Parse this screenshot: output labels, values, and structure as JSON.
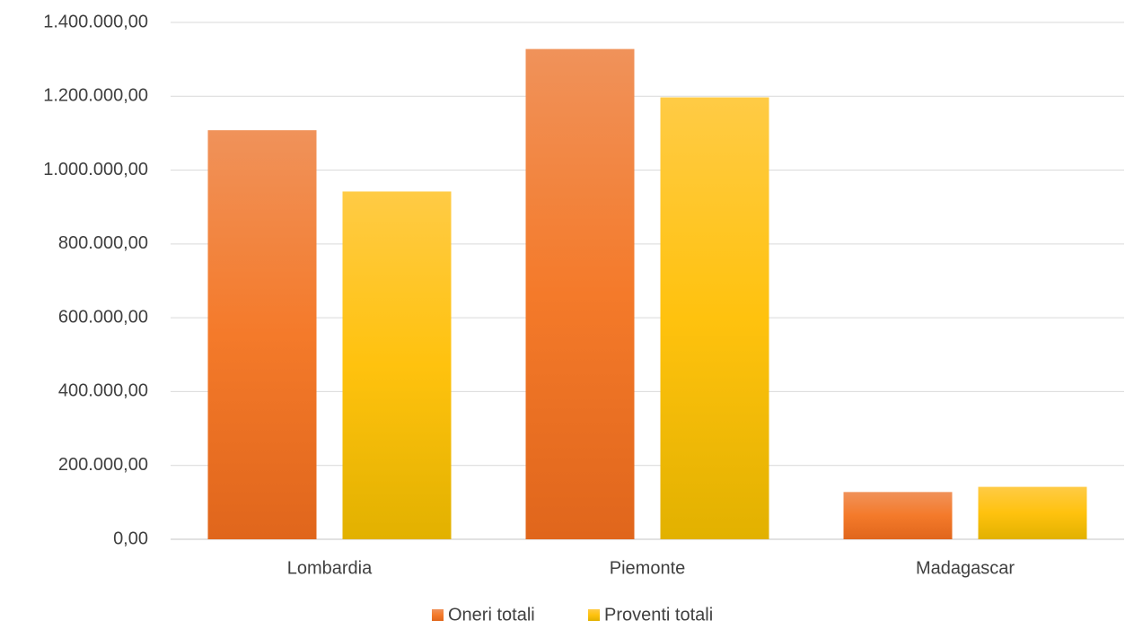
{
  "chart_data": {
    "type": "bar",
    "categories": [
      "Lombardia",
      "Piemonte",
      "Madagascar"
    ],
    "series": [
      {
        "name": "Oneri totali",
        "values": [
          1108000,
          1328000,
          128000
        ],
        "color_top": "#F0925A",
        "color_mid": "#F47A2A",
        "color_bottom": "#E0661C"
      },
      {
        "name": "Proventi totali",
        "values": [
          942000,
          1197000,
          142000
        ],
        "color_top": "#FFCB45",
        "color_mid": "#FFC20E",
        "color_bottom": "#E2B100"
      }
    ],
    "y_ticks": [
      {
        "value": 0,
        "label": "0,00"
      },
      {
        "value": 200000,
        "label": "200.000,00"
      },
      {
        "value": 400000,
        "label": "400.000,00"
      },
      {
        "value": 600000,
        "label": "600.000,00"
      },
      {
        "value": 800000,
        "label": "800.000,00"
      },
      {
        "value": 1000000,
        "label": "1.000.000,00"
      },
      {
        "value": 1200000,
        "label": "1.200.000,00"
      },
      {
        "value": 1400000,
        "label": "1.400.000,00"
      }
    ],
    "ylim": [
      0,
      1400000
    ],
    "grid": true,
    "legend": "bottom",
    "axis_text_color": "#404040",
    "grid_color": "#D9D9D9"
  }
}
